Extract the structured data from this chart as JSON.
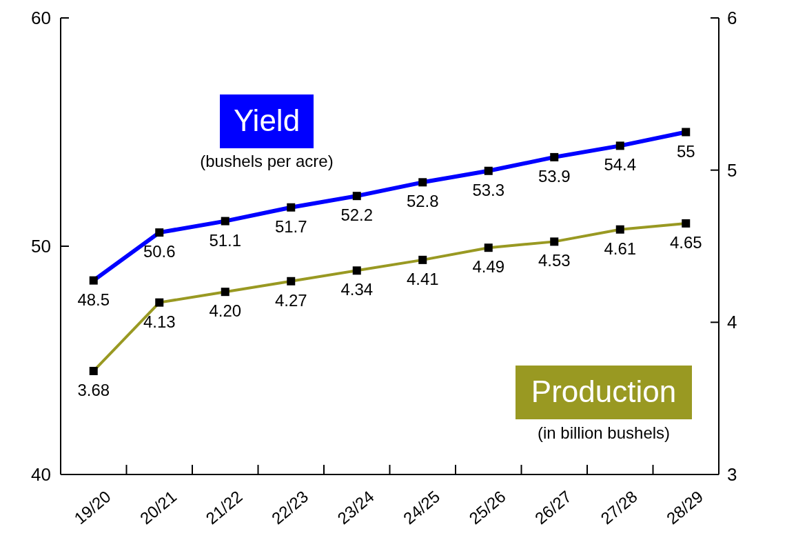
{
  "chart_data": {
    "type": "line",
    "categories": [
      "19/20",
      "20/21",
      "21/22",
      "22/23",
      "23/24",
      "24/25",
      "25/26",
      "26/27",
      "27/28",
      "28/29"
    ],
    "series": [
      {
        "name": "Yield",
        "color": "#0000ff",
        "values": [
          48.5,
          50.6,
          51.1,
          51.7,
          52.2,
          52.8,
          53.3,
          53.9,
          54.4,
          55
        ],
        "value_labels": [
          "48.5",
          "50.6",
          "51.1",
          "51.7",
          "52.2",
          "52.8",
          "53.3",
          "53.9",
          "54.4",
          "55"
        ]
      },
      {
        "name": "Production",
        "color": "#999922",
        "axis": "y2",
        "values": [
          3.68,
          4.13,
          4.2,
          4.27,
          4.34,
          4.41,
          4.49,
          4.53,
          4.61,
          4.65
        ],
        "value_labels": [
          "3.68",
          "4.13",
          "4.20",
          "4.27",
          "4.34",
          "4.41",
          "4.49",
          "4.53",
          "4.61",
          "4.65"
        ]
      }
    ],
    "ylim": [
      40,
      60
    ],
    "yticks": [
      40,
      50,
      60
    ],
    "y2lim": [
      3,
      6
    ],
    "y2ticks": [
      3,
      4,
      5,
      6
    ],
    "annotations": [
      "(bushels per acre)",
      "(in billion bushels)"
    ],
    "marker": "square",
    "line_style": "solid",
    "grid": false
  }
}
